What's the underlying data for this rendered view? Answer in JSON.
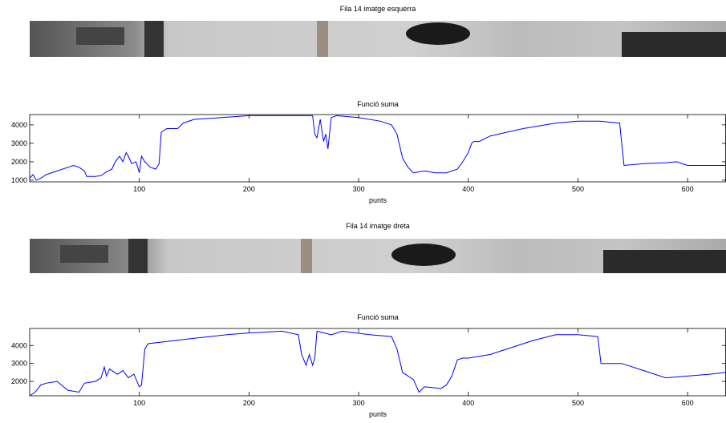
{
  "chart_data": [
    {
      "type": "image",
      "title": "Fila  14  imatge esquerra"
    },
    {
      "type": "line",
      "title": "Funció suma",
      "xlabel": "punts",
      "color": "#0000ff",
      "xlim": [
        0,
        635
      ],
      "ylim": [
        910,
        4560
      ],
      "xticks": [
        100,
        200,
        300,
        400,
        500,
        600
      ],
      "yticks": [
        1000,
        2000,
        3000,
        4000
      ],
      "x": [
        0,
        3,
        6,
        10,
        15,
        25,
        35,
        40,
        45,
        50,
        52,
        60,
        65,
        70,
        75,
        78,
        82,
        85,
        88,
        90,
        93,
        97,
        100,
        102,
        105,
        110,
        115,
        118,
        120,
        125,
        135,
        140,
        150,
        200,
        250,
        258,
        260,
        262,
        265,
        268,
        270,
        272,
        275,
        280,
        300,
        320,
        330,
        335,
        340,
        345,
        350,
        360,
        370,
        380,
        390,
        395,
        400,
        403,
        405,
        410,
        420,
        450,
        480,
        500,
        520,
        538,
        542,
        560,
        580,
        590,
        600,
        635
      ],
      "values": [
        1100,
        1300,
        1000,
        1100,
        1300,
        1500,
        1700,
        1800,
        1700,
        1500,
        1200,
        1200,
        1250,
        1450,
        1600,
        2000,
        2300,
        2000,
        2500,
        2300,
        1900,
        2000,
        1400,
        2300,
        2000,
        1700,
        1600,
        1900,
        3600,
        3800,
        3800,
        4100,
        4300,
        4500,
        4500,
        4500,
        3500,
        3300,
        4300,
        3100,
        3500,
        2700,
        4400,
        4500,
        4400,
        4200,
        4000,
        3500,
        2200,
        1700,
        1400,
        1500,
        1400,
        1400,
        1600,
        2000,
        2500,
        3000,
        3100,
        3100,
        3400,
        3800,
        4100,
        4200,
        4200,
        4100,
        1800,
        1900,
        1950,
        2000,
        1800,
        1800
      ]
    },
    {
      "type": "image",
      "title": "Fila  14  imatge dreta"
    },
    {
      "type": "line",
      "title": "Funció suma",
      "xlabel": "punts",
      "color": "#0000ff",
      "xlim": [
        0,
        635
      ],
      "ylim": [
        1200,
        4950
      ],
      "xticks": [
        100,
        200,
        300,
        400,
        500,
        600
      ],
      "yticks": [
        2000,
        3000,
        4000
      ],
      "x": [
        0,
        5,
        10,
        15,
        25,
        35,
        45,
        50,
        60,
        65,
        68,
        70,
        73,
        75,
        80,
        85,
        90,
        95,
        100,
        102,
        105,
        108,
        150,
        180,
        200,
        230,
        245,
        248,
        252,
        255,
        258,
        260,
        262,
        275,
        285,
        310,
        330,
        335,
        340,
        350,
        355,
        360,
        375,
        380,
        385,
        390,
        395,
        400,
        420,
        440,
        460,
        480,
        500,
        518,
        521,
        540,
        560,
        580,
        600,
        620,
        635
      ],
      "values": [
        1200,
        1400,
        1800,
        1900,
        2000,
        1500,
        1400,
        1900,
        2000,
        2200,
        2800,
        2300,
        2700,
        2600,
        2400,
        2600,
        2200,
        2400,
        1700,
        1800,
        3800,
        4100,
        4400,
        4600,
        4700,
        4800,
        4600,
        3500,
        2900,
        3500,
        2900,
        3300,
        4800,
        4600,
        4800,
        4600,
        4500,
        3800,
        2500,
        2100,
        1400,
        1700,
        1600,
        1800,
        2300,
        3200,
        3300,
        3300,
        3500,
        3900,
        4300,
        4600,
        4600,
        4500,
        3000,
        3000,
        2600,
        2200,
        2300,
        2400,
        2500
      ]
    }
  ]
}
